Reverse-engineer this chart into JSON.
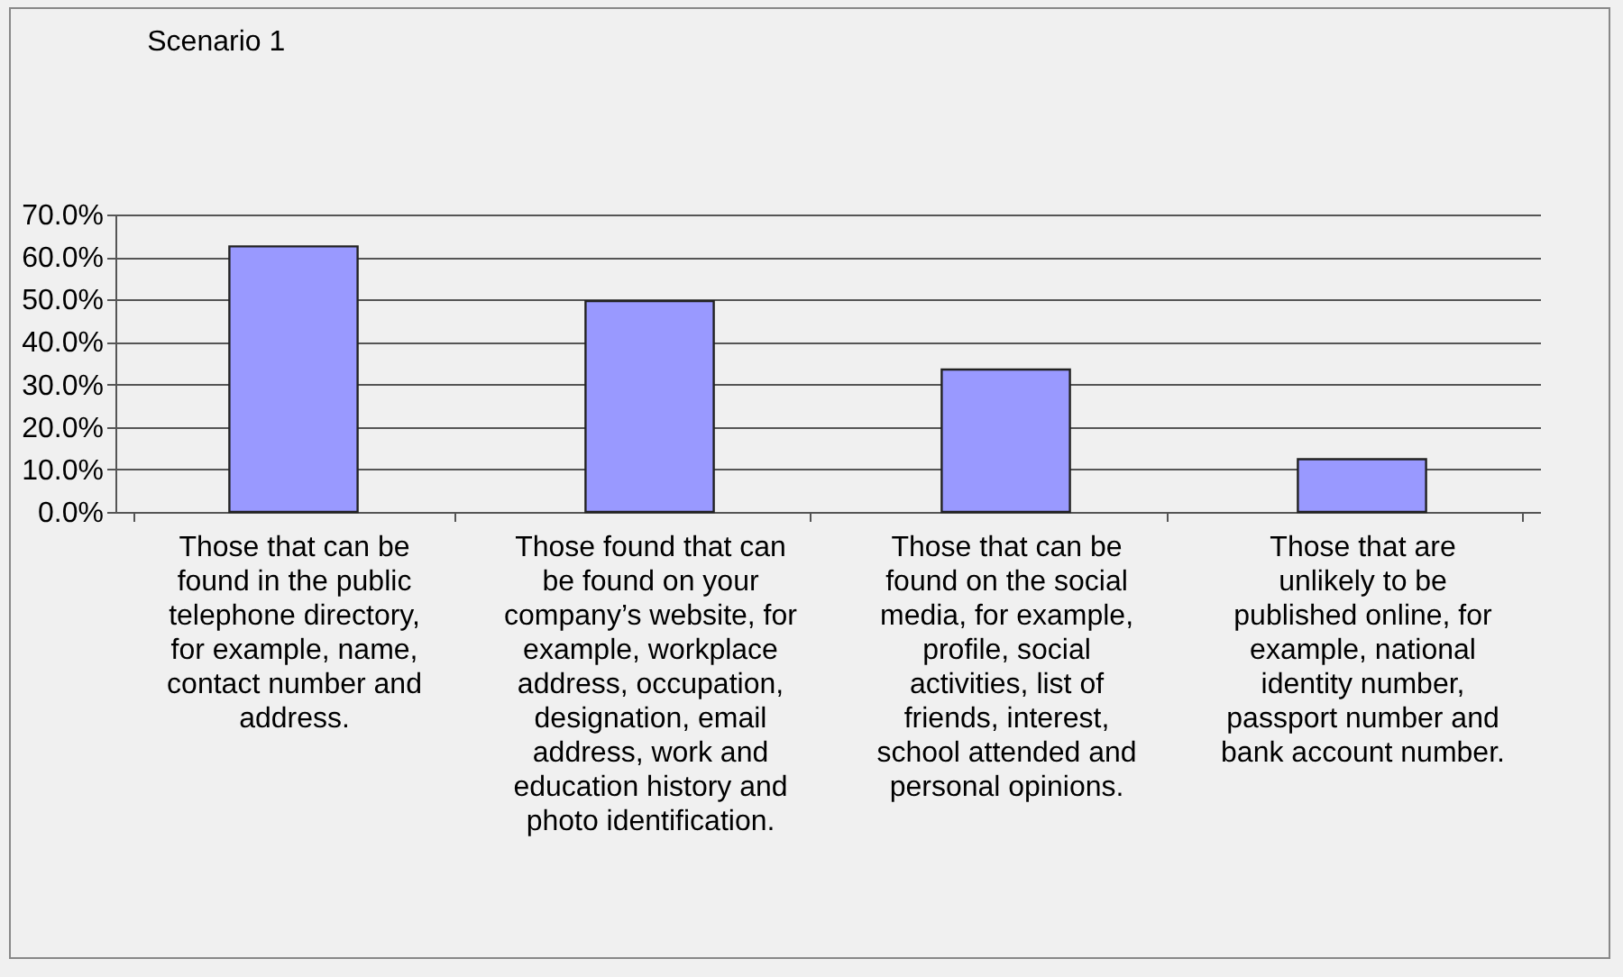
{
  "chart_data": {
    "type": "bar",
    "title": "Scenario 1",
    "categories": [
      "Those that can be found in the public telephone directory, for example, name, contact number and address.",
      "Those found that can be found on your company’s website, for example, workplace address, occupation, designation, email address, work and education history and photo identification.",
      "Those that can be found on the social media, for example, profile, social activities, list of friends, interest, school attended and personal opinions.",
      "Those that are unlikely to be published online, for example, national identity number, passport number and bank account number."
    ],
    "values": [
      62.5,
      49.6,
      33.5,
      12.4
    ],
    "color": "#9999ff",
    "ylim": [
      0,
      70
    ],
    "yticks": [
      {
        "value": 0,
        "label": "0.0%"
      },
      {
        "value": 10,
        "label": "10.0%"
      },
      {
        "value": 20,
        "label": "20.0%"
      },
      {
        "value": 30,
        "label": "30.0%"
      },
      {
        "value": 40,
        "label": "40.0%"
      },
      {
        "value": 50,
        "label": "50.0%"
      },
      {
        "value": 60,
        "label": "60.0%"
      },
      {
        "value": 70,
        "label": "70.0%"
      }
    ],
    "grid": "y"
  }
}
